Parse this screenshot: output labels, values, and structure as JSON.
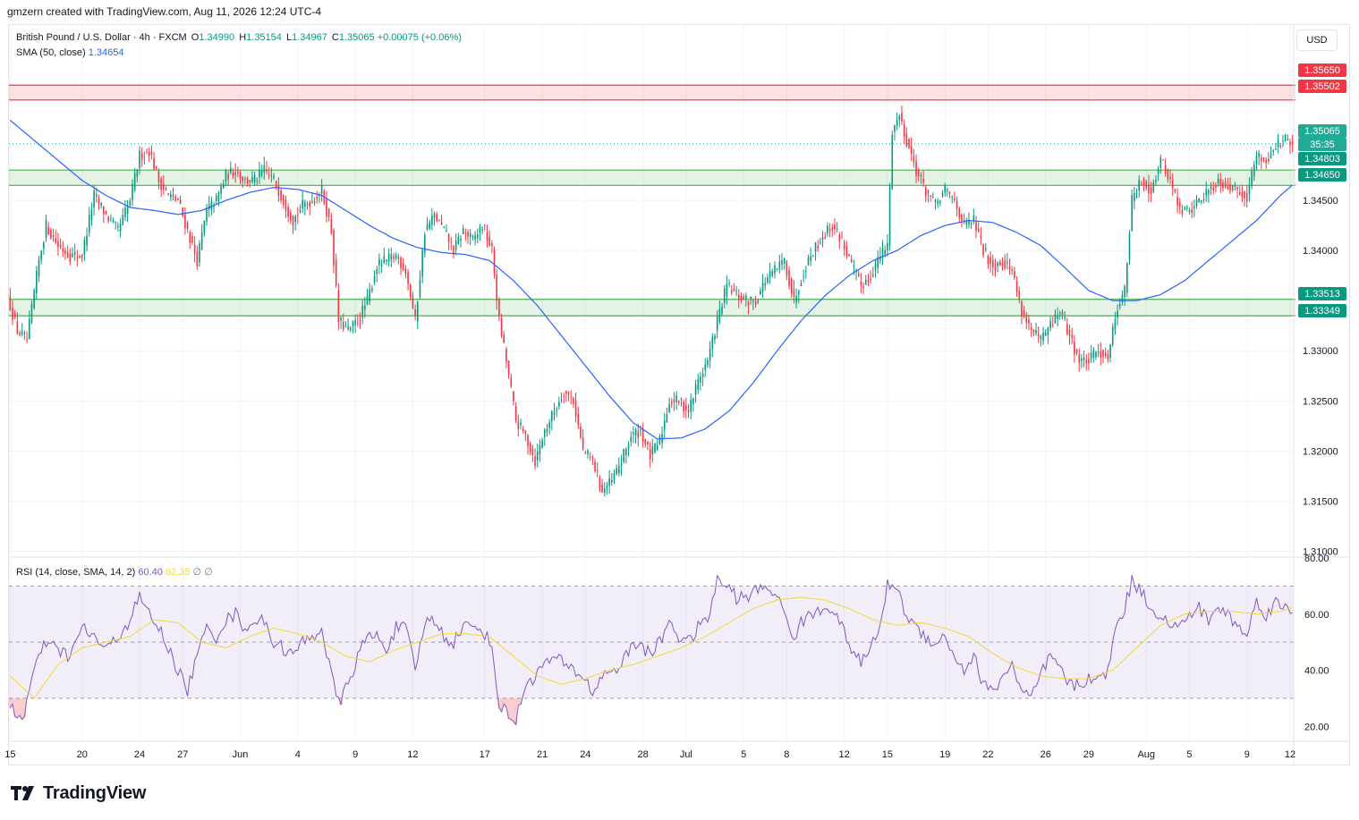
{
  "header": {
    "credit": "gmzern created with TradingView.com, Aug 11, 2026 12:24 UTC-4"
  },
  "legend": {
    "symbol": "British Pound / U.S. Dollar · 4h · FXCM",
    "ohlc": {
      "o_label": "O",
      "o": "1.34990",
      "h_label": "H",
      "h": "1.35154",
      "l_label": "L",
      "l": "1.34967",
      "c_label": "C",
      "c": "1.35065",
      "change": "+0.00075 (+0.06%)"
    },
    "sma": {
      "label": "SMA (50, close)",
      "value": "1.34654"
    },
    "rsi": {
      "label": "RSI (14, close, SMA, 14, 2)",
      "value": "60.40",
      "sma_value": "62.35",
      "extra1": "∅",
      "extra2": "∅"
    }
  },
  "axis": {
    "currency": "USD",
    "price_ticks": [
      "1.34500",
      "1.34000",
      "1.33000",
      "1.32500",
      "1.32000",
      "1.31500",
      "1.31000"
    ],
    "price_tick_values": [
      1.345,
      1.34,
      1.33,
      1.325,
      1.32,
      1.315,
      1.31
    ],
    "rsi_ticks": [
      "80.00",
      "60.00",
      "40.00",
      "20.00"
    ],
    "rsi_tick_values": [
      80,
      60,
      40,
      20
    ],
    "time_ticks": [
      "15",
      "20",
      "24",
      "27",
      "Jun",
      "4",
      "9",
      "12",
      "17",
      "21",
      "24",
      "28",
      "Jul",
      "5",
      "8",
      "12",
      "15",
      "19",
      "22",
      "26",
      "29",
      "Aug",
      "5",
      "9",
      "12"
    ],
    "time_tick_index": [
      0,
      30,
      54,
      72,
      96,
      120,
      144,
      168,
      198,
      222,
      240,
      264,
      282,
      306,
      324,
      348,
      366,
      390,
      408,
      432,
      450,
      474,
      492,
      516,
      534
    ]
  },
  "price_tags": {
    "resistance_top": "1.35650",
    "resistance_bottom": "1.35502",
    "last_price": "1.35065",
    "countdown": "35:35",
    "support1_top": "1.34803",
    "support1_bottom": "1.34650",
    "support2_top": "1.33513",
    "support2_bottom": "1.33349"
  },
  "brand": {
    "name": "TradingView"
  },
  "colors": {
    "up": "#089981",
    "down": "#f23645",
    "sma": "#2962ff",
    "rsi": "#7e57c2",
    "rsi_sma": "#f7d634",
    "zone_red": "#f23645",
    "zone_green": "#4caf50"
  },
  "chart_data": {
    "type": "candlestick",
    "instrument": "British Pound / U.S. Dollar",
    "timeframe": "4h",
    "price_range": [
      1.3095,
      1.3625
    ],
    "zones": [
      {
        "type": "resistance",
        "top": 1.3565,
        "bottom": 1.35502
      },
      {
        "type": "support",
        "top": 1.34803,
        "bottom": 1.3465
      },
      {
        "type": "support",
        "top": 1.33513,
        "bottom": 1.33349
      }
    ],
    "last_close": 1.35065,
    "price_path_knots": [
      [
        0,
        1.3345
      ],
      [
        3,
        1.332
      ],
      [
        7,
        1.331
      ],
      [
        12,
        1.339
      ],
      [
        15,
        1.3425
      ],
      [
        20,
        1.3405
      ],
      [
        25,
        1.3395
      ],
      [
        30,
        1.3395
      ],
      [
        35,
        1.3455
      ],
      [
        40,
        1.3435
      ],
      [
        45,
        1.342
      ],
      [
        50,
        1.345
      ],
      [
        54,
        1.3495
      ],
      [
        58,
        1.35
      ],
      [
        62,
        1.347
      ],
      [
        66,
        1.3455
      ],
      [
        70,
        1.345
      ],
      [
        74,
        1.342
      ],
      [
        78,
        1.339
      ],
      [
        82,
        1.344
      ],
      [
        86,
        1.345
      ],
      [
        90,
        1.3475
      ],
      [
        94,
        1.348
      ],
      [
        98,
        1.347
      ],
      [
        102,
        1.347
      ],
      [
        106,
        1.348
      ],
      [
        110,
        1.347
      ],
      [
        114,
        1.345
      ],
      [
        118,
        1.343
      ],
      [
        122,
        1.3445
      ],
      [
        126,
        1.345
      ],
      [
        130,
        1.346
      ],
      [
        134,
        1.342
      ],
      [
        137,
        1.333
      ],
      [
        141,
        1.332
      ],
      [
        145,
        1.333
      ],
      [
        149,
        1.335
      ],
      [
        153,
        1.3385
      ],
      [
        157,
        1.339
      ],
      [
        161,
        1.3395
      ],
      [
        165,
        1.338
      ],
      [
        169,
        1.333
      ],
      [
        173,
        1.342
      ],
      [
        177,
        1.3435
      ],
      [
        181,
        1.342
      ],
      [
        185,
        1.34
      ],
      [
        189,
        1.342
      ],
      [
        193,
        1.341
      ],
      [
        197,
        1.3425
      ],
      [
        201,
        1.34
      ],
      [
        204,
        1.333
      ],
      [
        207,
        1.329
      ],
      [
        211,
        1.323
      ],
      [
        215,
        1.3215
      ],
      [
        219,
        1.319
      ],
      [
        223,
        1.322
      ],
      [
        227,
        1.324
      ],
      [
        231,
        1.326
      ],
      [
        235,
        1.325
      ],
      [
        239,
        1.32
      ],
      [
        243,
        1.319
      ],
      [
        247,
        1.316
      ],
      [
        251,
        1.317
      ],
      [
        255,
        1.319
      ],
      [
        259,
        1.3215
      ],
      [
        263,
        1.322
      ],
      [
        267,
        1.3195
      ],
      [
        271,
        1.321
      ],
      [
        275,
        1.325
      ],
      [
        279,
        1.325
      ],
      [
        283,
        1.324
      ],
      [
        287,
        1.327
      ],
      [
        291,
        1.329
      ],
      [
        295,
        1.333
      ],
      [
        299,
        1.3365
      ],
      [
        303,
        1.3355
      ],
      [
        307,
        1.335
      ],
      [
        311,
        1.335
      ],
      [
        315,
        1.337
      ],
      [
        319,
        1.338
      ],
      [
        323,
        1.339
      ],
      [
        327,
        1.335
      ],
      [
        331,
        1.338
      ],
      [
        335,
        1.34
      ],
      [
        339,
        1.3415
      ],
      [
        343,
        1.3425
      ],
      [
        347,
        1.341
      ],
      [
        351,
        1.3385
      ],
      [
        355,
        1.3365
      ],
      [
        359,
        1.3375
      ],
      [
        363,
        1.3395
      ],
      [
        366,
        1.3405
      ],
      [
        368,
        1.352
      ],
      [
        371,
        1.3535
      ],
      [
        374,
        1.351
      ],
      [
        378,
        1.348
      ],
      [
        382,
        1.346
      ],
      [
        386,
        1.3445
      ],
      [
        390,
        1.346
      ],
      [
        394,
        1.345
      ],
      [
        398,
        1.3425
      ],
      [
        402,
        1.343
      ],
      [
        406,
        1.34
      ],
      [
        410,
        1.3385
      ],
      [
        414,
        1.339
      ],
      [
        418,
        1.338
      ],
      [
        422,
        1.334
      ],
      [
        426,
        1.332
      ],
      [
        430,
        1.331
      ],
      [
        434,
        1.3325
      ],
      [
        438,
        1.334
      ],
      [
        442,
        1.3315
      ],
      [
        446,
        1.329
      ],
      [
        450,
        1.329
      ],
      [
        454,
        1.33
      ],
      [
        458,
        1.3295
      ],
      [
        462,
        1.3345
      ],
      [
        465,
        1.336
      ],
      [
        468,
        1.345
      ],
      [
        472,
        1.347
      ],
      [
        476,
        1.346
      ],
      [
        480,
        1.349
      ],
      [
        484,
        1.347
      ],
      [
        488,
        1.344
      ],
      [
        492,
        1.344
      ],
      [
        496,
        1.345
      ],
      [
        500,
        1.346
      ],
      [
        504,
        1.347
      ],
      [
        508,
        1.3465
      ],
      [
        512,
        1.346
      ],
      [
        516,
        1.3455
      ],
      [
        520,
        1.3495
      ],
      [
        524,
        1.349
      ],
      [
        528,
        1.3505
      ],
      [
        532,
        1.351
      ],
      [
        535,
        1.35065
      ]
    ],
    "sma_knots": [
      [
        0,
        1.353
      ],
      [
        10,
        1.351
      ],
      [
        20,
        1.349
      ],
      [
        30,
        1.347
      ],
      [
        40,
        1.3455
      ],
      [
        50,
        1.3443
      ],
      [
        60,
        1.344
      ],
      [
        70,
        1.3436
      ],
      [
        80,
        1.344
      ],
      [
        90,
        1.345
      ],
      [
        100,
        1.3458
      ],
      [
        110,
        1.3463
      ],
      [
        120,
        1.3461
      ],
      [
        130,
        1.3455
      ],
      [
        140,
        1.344
      ],
      [
        150,
        1.3425
      ],
      [
        160,
        1.3412
      ],
      [
        170,
        1.3403
      ],
      [
        180,
        1.3398
      ],
      [
        190,
        1.3396
      ],
      [
        200,
        1.339
      ],
      [
        210,
        1.337
      ],
      [
        220,
        1.3345
      ],
      [
        230,
        1.3315
      ],
      [
        240,
        1.3285
      ],
      [
        250,
        1.3255
      ],
      [
        260,
        1.3228
      ],
      [
        270,
        1.3212
      ],
      [
        280,
        1.3213
      ],
      [
        290,
        1.3222
      ],
      [
        300,
        1.324
      ],
      [
        310,
        1.3268
      ],
      [
        320,
        1.33
      ],
      [
        330,
        1.333
      ],
      [
        340,
        1.3355
      ],
      [
        350,
        1.3375
      ],
      [
        360,
        1.339
      ],
      [
        370,
        1.34
      ],
      [
        380,
        1.3415
      ],
      [
        390,
        1.3425
      ],
      [
        400,
        1.343
      ],
      [
        410,
        1.3428
      ],
      [
        420,
        1.3418
      ],
      [
        430,
        1.3405
      ],
      [
        440,
        1.3383
      ],
      [
        450,
        1.336
      ],
      [
        460,
        1.335
      ],
      [
        470,
        1.335
      ],
      [
        480,
        1.3356
      ],
      [
        490,
        1.337
      ],
      [
        500,
        1.339
      ],
      [
        510,
        1.341
      ],
      [
        520,
        1.343
      ],
      [
        530,
        1.3455
      ],
      [
        535,
        1.34654
      ]
    ],
    "rsi_range": [
      15,
      80
    ],
    "rsi_levels": [
      70,
      50,
      30
    ],
    "rsi_last": 60.4,
    "rsi_sma_last": 62.35,
    "rsi_knots": [
      [
        0,
        28
      ],
      [
        5,
        22
      ],
      [
        10,
        40
      ],
      [
        15,
        50
      ],
      [
        20,
        47
      ],
      [
        25,
        45
      ],
      [
        30,
        55
      ],
      [
        35,
        52
      ],
      [
        40,
        47
      ],
      [
        45,
        52
      ],
      [
        50,
        58
      ],
      [
        54,
        66
      ],
      [
        58,
        60
      ],
      [
        62,
        55
      ],
      [
        66,
        48
      ],
      [
        70,
        40
      ],
      [
        74,
        33
      ],
      [
        78,
        45
      ],
      [
        82,
        55
      ],
      [
        86,
        52
      ],
      [
        90,
        58
      ],
      [
        94,
        60
      ],
      [
        98,
        55
      ],
      [
        102,
        58
      ],
      [
        106,
        57
      ],
      [
        110,
        50
      ],
      [
        114,
        48
      ],
      [
        118,
        45
      ],
      [
        122,
        50
      ],
      [
        126,
        52
      ],
      [
        130,
        55
      ],
      [
        134,
        38
      ],
      [
        137,
        28
      ],
      [
        141,
        35
      ],
      [
        145,
        45
      ],
      [
        149,
        52
      ],
      [
        153,
        52
      ],
      [
        157,
        48
      ],
      [
        161,
        55
      ],
      [
        165,
        55
      ],
      [
        169,
        40
      ],
      [
        173,
        57
      ],
      [
        177,
        58
      ],
      [
        181,
        52
      ],
      [
        185,
        50
      ],
      [
        189,
        56
      ],
      [
        193,
        55
      ],
      [
        197,
        55
      ],
      [
        201,
        48
      ],
      [
        204,
        28
      ],
      [
        207,
        25
      ],
      [
        211,
        22
      ],
      [
        215,
        35
      ],
      [
        219,
        38
      ],
      [
        223,
        42
      ],
      [
        227,
        45
      ],
      [
        231,
        42
      ],
      [
        235,
        40
      ],
      [
        239,
        38
      ],
      [
        243,
        32
      ],
      [
        247,
        38
      ],
      [
        251,
        40
      ],
      [
        255,
        42
      ],
      [
        259,
        48
      ],
      [
        263,
        50
      ],
      [
        267,
        45
      ],
      [
        271,
        50
      ],
      [
        275,
        58
      ],
      [
        279,
        52
      ],
      [
        283,
        50
      ],
      [
        287,
        55
      ],
      [
        291,
        58
      ],
      [
        295,
        72
      ],
      [
        299,
        70
      ],
      [
        303,
        66
      ],
      [
        307,
        66
      ],
      [
        311,
        68
      ],
      [
        315,
        70
      ],
      [
        319,
        68
      ],
      [
        323,
        60
      ],
      [
        327,
        52
      ],
      [
        331,
        58
      ],
      [
        335,
        60
      ],
      [
        339,
        62
      ],
      [
        343,
        63
      ],
      [
        347,
        55
      ],
      [
        351,
        48
      ],
      [
        355,
        42
      ],
      [
        359,
        48
      ],
      [
        363,
        56
      ],
      [
        366,
        70
      ],
      [
        368,
        72
      ],
      [
        371,
        66
      ],
      [
        374,
        60
      ],
      [
        378,
        55
      ],
      [
        382,
        52
      ],
      [
        386,
        50
      ],
      [
        390,
        52
      ],
      [
        394,
        45
      ],
      [
        398,
        40
      ],
      [
        402,
        45
      ],
      [
        406,
        35
      ],
      [
        410,
        32
      ],
      [
        414,
        38
      ],
      [
        418,
        42
      ],
      [
        422,
        32
      ],
      [
        426,
        30
      ],
      [
        430,
        38
      ],
      [
        434,
        45
      ],
      [
        438,
        40
      ],
      [
        442,
        35
      ],
      [
        446,
        34
      ],
      [
        450,
        38
      ],
      [
        454,
        36
      ],
      [
        458,
        40
      ],
      [
        462,
        58
      ],
      [
        465,
        62
      ],
      [
        468,
        72
      ],
      [
        472,
        68
      ],
      [
        476,
        62
      ],
      [
        480,
        60
      ],
      [
        484,
        56
      ],
      [
        488,
        55
      ],
      [
        492,
        60
      ],
      [
        496,
        62
      ],
      [
        500,
        58
      ],
      [
        504,
        62
      ],
      [
        508,
        60
      ],
      [
        512,
        56
      ],
      [
        516,
        52
      ],
      [
        520,
        65
      ],
      [
        524,
        60
      ],
      [
        528,
        64
      ],
      [
        532,
        62
      ],
      [
        535,
        60.4
      ]
    ],
    "rsi_sma_knots": [
      [
        0,
        38
      ],
      [
        10,
        30
      ],
      [
        20,
        42
      ],
      [
        30,
        48
      ],
      [
        40,
        50
      ],
      [
        50,
        52
      ],
      [
        60,
        58
      ],
      [
        70,
        57
      ],
      [
        80,
        50
      ],
      [
        90,
        48
      ],
      [
        100,
        52
      ],
      [
        110,
        55
      ],
      [
        120,
        53
      ],
      [
        130,
        50
      ],
      [
        140,
        45
      ],
      [
        150,
        43
      ],
      [
        160,
        47
      ],
      [
        170,
        50
      ],
      [
        180,
        53
      ],
      [
        190,
        53
      ],
      [
        200,
        52
      ],
      [
        210,
        45
      ],
      [
        220,
        38
      ],
      [
        230,
        35
      ],
      [
        240,
        37
      ],
      [
        250,
        40
      ],
      [
        260,
        42
      ],
      [
        270,
        45
      ],
      [
        280,
        48
      ],
      [
        290,
        52
      ],
      [
        300,
        57
      ],
      [
        310,
        62
      ],
      [
        320,
        65
      ],
      [
        330,
        66
      ],
      [
        340,
        65
      ],
      [
        350,
        62
      ],
      [
        360,
        58
      ],
      [
        370,
        56
      ],
      [
        380,
        57
      ],
      [
        390,
        55
      ],
      [
        400,
        52
      ],
      [
        410,
        46
      ],
      [
        420,
        41
      ],
      [
        430,
        38
      ],
      [
        440,
        37
      ],
      [
        450,
        37
      ],
      [
        460,
        40
      ],
      [
        470,
        48
      ],
      [
        480,
        56
      ],
      [
        490,
        60
      ],
      [
        500,
        61
      ],
      [
        510,
        61
      ],
      [
        520,
        60
      ],
      [
        530,
        61
      ],
      [
        535,
        62.35
      ]
    ]
  }
}
